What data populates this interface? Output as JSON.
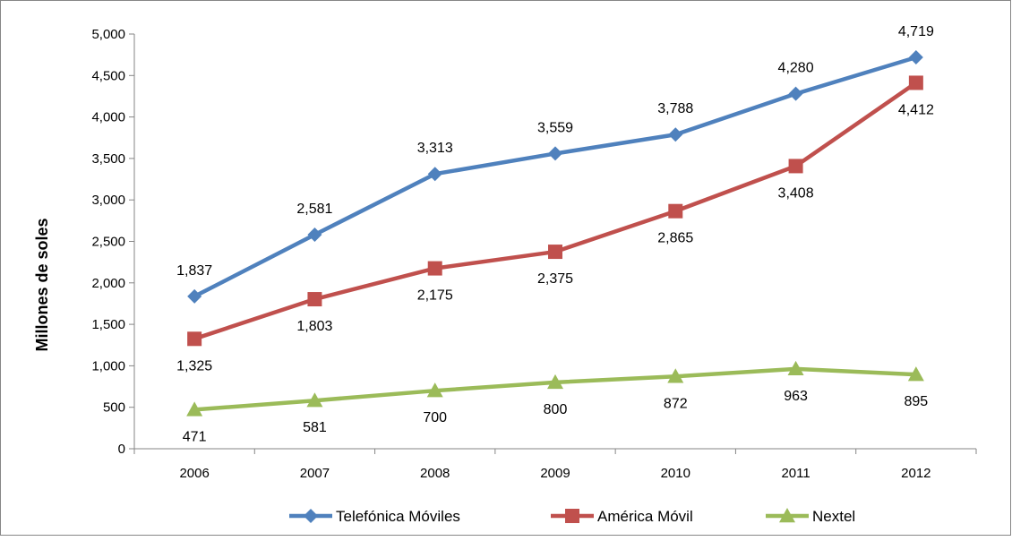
{
  "chart_data": {
    "type": "line",
    "title": "",
    "xlabel": "",
    "ylabel": "Millones de soles",
    "categories": [
      "2006",
      "2007",
      "2008",
      "2009",
      "2010",
      "2011",
      "2012"
    ],
    "ylim": [
      0,
      5000
    ],
    "yticks": [
      0,
      500,
      1000,
      1500,
      2000,
      2500,
      3000,
      3500,
      4000,
      4500,
      5000
    ],
    "ytick_labels": [
      "0",
      "500",
      "1,000",
      "1,500",
      "2,000",
      "2,500",
      "3,000",
      "3,500",
      "4,000",
      "4,500",
      "5,000"
    ],
    "grid": false,
    "legend_position": "bottom",
    "series": [
      {
        "name": "Telefónica Móviles",
        "color": "#4F81BD",
        "marker": "diamond",
        "values": [
          1837,
          2581,
          3313,
          3559,
          3788,
          4280,
          4719
        ],
        "labels": [
          "1,837",
          "2,581",
          "3,313",
          "3,559",
          "3,788",
          "4,280",
          "4,719"
        ],
        "label_position": "above"
      },
      {
        "name": "América Móvil",
        "color": "#C0504D",
        "marker": "square",
        "values": [
          1325,
          1803,
          2175,
          2375,
          2865,
          3408,
          4412
        ],
        "labels": [
          "1,325",
          "1,803",
          "2,175",
          "2,375",
          "2,865",
          "3,408",
          "4,412"
        ],
        "label_position": "below"
      },
      {
        "name": "Nextel",
        "color": "#9BBB59",
        "marker": "triangle",
        "values": [
          471,
          581,
          700,
          800,
          872,
          963,
          895
        ],
        "labels": [
          "471",
          "581",
          "700",
          "800",
          "872",
          "963",
          "895"
        ],
        "label_position": "below"
      }
    ]
  }
}
